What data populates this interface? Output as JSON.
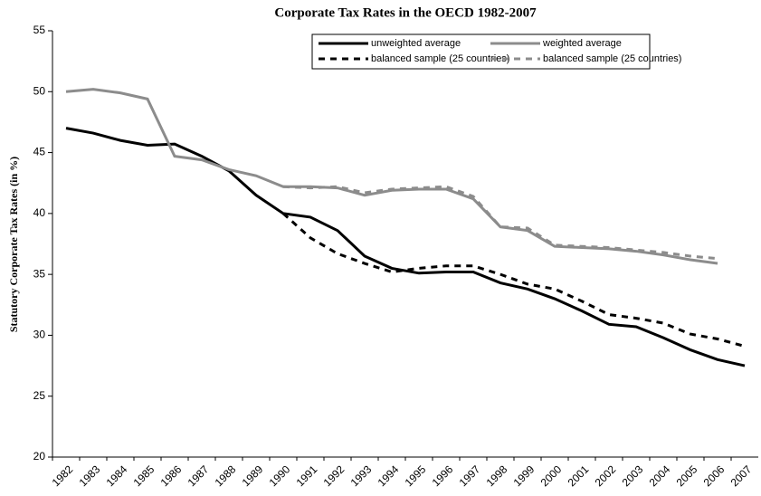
{
  "chart_data": {
    "type": "line",
    "title": "Corporate Tax Rates in the OECD 1982-2007",
    "y_label": "Statutory Corporate Tax Rates (in %)",
    "categories": [
      "1982",
      "1983",
      "1984",
      "1985",
      "1986",
      "1987",
      "1988",
      "1989",
      "1990",
      "1991",
      "1992",
      "1993",
      "1994",
      "1995",
      "1996",
      "1997",
      "1998",
      "1999",
      "2000",
      "2001",
      "2002",
      "2003",
      "2004",
      "2005",
      "2006",
      "2007"
    ],
    "ylim": [
      20,
      55
    ],
    "yticks": [
      20,
      25,
      30,
      35,
      40,
      45,
      50,
      55
    ],
    "series": [
      {
        "name": "unweighted average",
        "color": "#000000",
        "dash": false,
        "values": [
          47.0,
          46.6,
          46.0,
          45.6,
          45.7,
          44.7,
          43.5,
          41.5,
          40.0,
          39.7,
          38.6,
          36.5,
          35.5,
          35.1,
          35.2,
          35.2,
          34.3,
          33.8,
          33.0,
          32.0,
          30.9,
          30.7,
          29.8,
          28.8,
          28.0,
          27.5
        ]
      },
      {
        "name": "weighted average",
        "color": "#8c8c8c",
        "dash": false,
        "values": [
          50.0,
          50.2,
          49.9,
          49.4,
          44.7,
          44.4,
          43.6,
          43.1,
          42.2,
          42.2,
          42.1,
          41.5,
          41.9,
          42.0,
          42.0,
          41.2,
          38.9,
          38.6,
          37.3,
          37.2,
          37.1,
          36.9,
          36.6,
          36.2,
          35.9,
          null
        ]
      },
      {
        "name": "balanced sample (25 countries)",
        "color": "#000000",
        "dash": true,
        "values": [
          null,
          null,
          null,
          null,
          null,
          null,
          null,
          null,
          40.0,
          38.0,
          36.7,
          35.9,
          35.2,
          35.5,
          35.7,
          35.7,
          35.0,
          34.2,
          33.8,
          32.8,
          31.7,
          31.4,
          31.0,
          30.1,
          29.7,
          29.1
        ]
      },
      {
        "name": "balanced sample (25 countries)",
        "color": "#8c8c8c",
        "dash": true,
        "values": [
          null,
          null,
          null,
          null,
          null,
          null,
          null,
          null,
          42.2,
          42.1,
          42.2,
          41.7,
          42.0,
          42.1,
          42.2,
          41.4,
          38.9,
          38.8,
          37.4,
          37.3,
          37.2,
          37.0,
          36.8,
          36.5,
          36.3,
          null
        ]
      }
    ]
  }
}
